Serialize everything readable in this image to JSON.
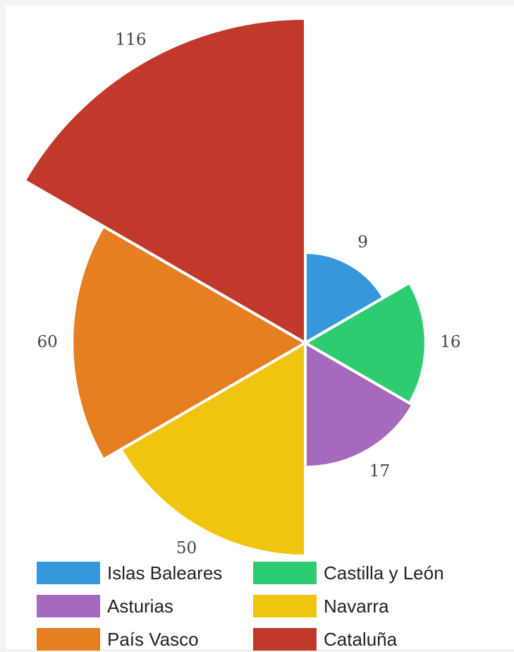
{
  "chart_data": {
    "type": "polar-area",
    "series": [
      {
        "name": "Islas Baleares",
        "value": 9,
        "color": "#3498db"
      },
      {
        "name": "Castilla y León",
        "value": 16,
        "color": "#2ecc71"
      },
      {
        "name": "Asturias",
        "value": 17,
        "color": "#a569bd"
      },
      {
        "name": "Navarra",
        "value": 50,
        "color": "#f1c40f"
      },
      {
        "name": "País Vasco",
        "value": 60,
        "color": "#e67e22"
      },
      {
        "name": "Cataluña",
        "value": 116,
        "color": "#c0392b"
      }
    ],
    "legend_position": "bottom"
  }
}
